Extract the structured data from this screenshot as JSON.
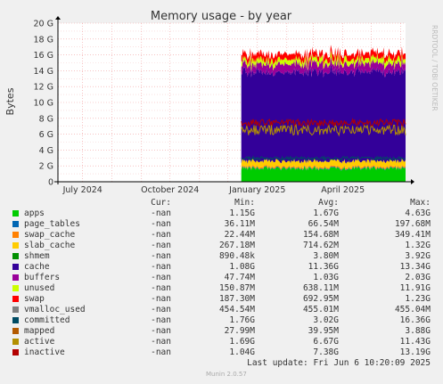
{
  "chart_data": {
    "type": "area",
    "title": "Memory usage - by year",
    "ylabel": "Bytes",
    "side_label": "RRDTOOL / TOBI OETIKER",
    "y_ticks": [
      "0",
      "2 G",
      "4 G",
      "6 G",
      "8 G",
      "10 G",
      "12 G",
      "14 G",
      "16 G",
      "18 G",
      "20 G"
    ],
    "ylim": [
      0,
      20
    ],
    "x_ticks": [
      "July 2024",
      "October 2024",
      "January 2025",
      "April 2025"
    ],
    "x_tick_dates": [
      "2024-07-01",
      "2024-10-01",
      "2025-01-01",
      "2025-04-01"
    ],
    "xlim": [
      "2024-06-05",
      "2025-06-06"
    ],
    "data_start": "2024-12-15",
    "grid": true,
    "stack_order": [
      "apps",
      "page_tables",
      "swap_cache",
      "slab_cache",
      "shmem",
      "cache",
      "buffers",
      "unused",
      "swap"
    ],
    "series_values_gb_approx": {
      "apps": 1.67,
      "page_tables": 0.07,
      "swap_cache": 0.15,
      "slab_cache": 0.71,
      "shmem": 0.004,
      "cache": 11.36,
      "buffers": 1.03,
      "unused": 0.64,
      "swap": 0.69,
      "committed": 3.02,
      "active": 6.67,
      "inactive": 7.38
    },
    "columns": [
      "Cur:",
      "Min:",
      "Avg:",
      "Max:"
    ],
    "series": [
      {
        "name": "apps",
        "color": "#00cc00",
        "cur": "-nan",
        "min": "1.15G",
        "avg": "1.67G",
        "max": "4.63G"
      },
      {
        "name": "page_tables",
        "color": "#0066b3",
        "cur": "-nan",
        "min": "36.11M",
        "avg": "66.54M",
        "max": "197.68M"
      },
      {
        "name": "swap_cache",
        "color": "#ff8000",
        "cur": "-nan",
        "min": "22.44M",
        "avg": "154.68M",
        "max": "349.41M"
      },
      {
        "name": "slab_cache",
        "color": "#ffcc00",
        "cur": "-nan",
        "min": "267.18M",
        "avg": "714.62M",
        "max": "1.32G"
      },
      {
        "name": "shmem",
        "color": "#008f00",
        "cur": "-nan",
        "min": "890.48k",
        "avg": "3.80M",
        "max": "3.92G"
      },
      {
        "name": "cache",
        "color": "#330099",
        "cur": "-nan",
        "min": "1.08G",
        "avg": "11.36G",
        "max": "13.34G"
      },
      {
        "name": "buffers",
        "color": "#990099",
        "cur": "-nan",
        "min": "47.74M",
        "avg": "1.03G",
        "max": "2.03G"
      },
      {
        "name": "unused",
        "color": "#ccff00",
        "cur": "-nan",
        "min": "150.87M",
        "avg": "638.11M",
        "max": "11.91G"
      },
      {
        "name": "swap",
        "color": "#ff0000",
        "cur": "-nan",
        "min": "187.30M",
        "avg": "692.95M",
        "max": "1.23G"
      },
      {
        "name": "vmalloc_used",
        "color": "#808080",
        "cur": "-nan",
        "min": "454.54M",
        "avg": "455.01M",
        "max": "455.04M"
      },
      {
        "name": "committed",
        "color": "#004b63",
        "cur": "-nan",
        "min": "1.76G",
        "avg": "3.02G",
        "max": "16.36G"
      },
      {
        "name": "mapped",
        "color": "#b35a00",
        "cur": "-nan",
        "min": "27.99M",
        "avg": "39.95M",
        "max": "3.88G"
      },
      {
        "name": "active",
        "color": "#b38f00",
        "cur": "-nan",
        "min": "1.69G",
        "avg": "6.67G",
        "max": "11.43G"
      },
      {
        "name": "inactive",
        "color": "#b30000",
        "cur": "-nan",
        "min": "1.04G",
        "avg": "7.38G",
        "max": "13.19G"
      }
    ]
  },
  "footer": {
    "last_update": "Last update: Fri Jun  6 10:20:09 2025",
    "munin": "Munin 2.0.57"
  },
  "colors": {
    "background": "#f0f0f0",
    "plot_background": "#ffffff",
    "grid": "#ff9999",
    "axis": "#000000"
  }
}
